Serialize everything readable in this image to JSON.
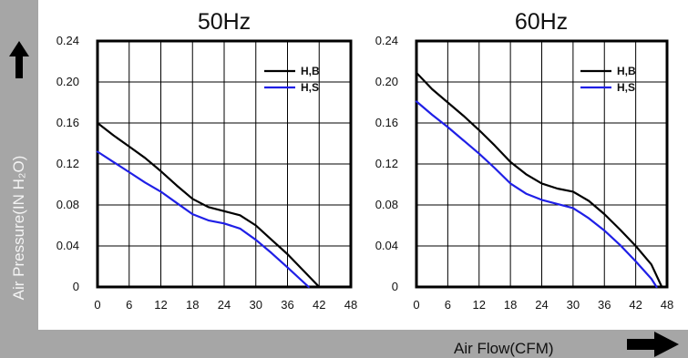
{
  "y_axis_title": "Air Pressure(IN H₂O)",
  "x_axis_title": "Air Flow(CFM)",
  "colors": {
    "band": "#a6a6a6",
    "series_hb": "#000000",
    "series_hs": "#1f1fe6",
    "grid": "#000000",
    "arrow": "#000000"
  },
  "icons": {
    "y_arrow": "arrow-up-icon",
    "x_arrow": "arrow-right-icon"
  },
  "chart_data": [
    {
      "type": "line",
      "title": "50Hz",
      "xlabel": "Air Flow(CFM)",
      "ylabel": "Air Pressure(IN H₂O)",
      "xlim": [
        0,
        48
      ],
      "ylim": [
        0,
        0.24
      ],
      "xticks": [
        "0",
        "6",
        "12",
        "18",
        "24",
        "30",
        "36",
        "42",
        "48"
      ],
      "yticks": [
        "0",
        "0.04",
        "0.08",
        "0.12",
        "0.16",
        "0.20",
        "0.24"
      ],
      "grid": true,
      "legend": "top-right",
      "series": [
        {
          "name": "H,B",
          "color": "#000000",
          "x": [
            0,
            3,
            6,
            9,
            12,
            15,
            18,
            21,
            24,
            27,
            30,
            33,
            36,
            39,
            42
          ],
          "y": [
            0.16,
            0.148,
            0.137,
            0.126,
            0.113,
            0.099,
            0.086,
            0.078,
            0.074,
            0.07,
            0.06,
            0.046,
            0.032,
            0.016,
            0.0
          ]
        },
        {
          "name": "H,S",
          "color": "#1f1fe6",
          "x": [
            0,
            3,
            6,
            9,
            12,
            15,
            18,
            21,
            24,
            27,
            30,
            33,
            36,
            40
          ],
          "y": [
            0.132,
            0.122,
            0.112,
            0.102,
            0.093,
            0.082,
            0.071,
            0.065,
            0.062,
            0.057,
            0.046,
            0.033,
            0.019,
            0.0
          ]
        }
      ]
    },
    {
      "type": "line",
      "title": "60Hz",
      "xlabel": "Air Flow(CFM)",
      "ylabel": "Air Pressure(IN H₂O)",
      "xlim": [
        0,
        48
      ],
      "ylim": [
        0,
        0.24
      ],
      "xticks": [
        "0",
        "6",
        "12",
        "18",
        "24",
        "30",
        "36",
        "42",
        "48"
      ],
      "yticks": [
        "0",
        "0.04",
        "0.08",
        "0.12",
        "0.16",
        "0.20",
        "0.24"
      ],
      "grid": true,
      "legend": "top-right",
      "series": [
        {
          "name": "H,B",
          "color": "#000000",
          "x": [
            0,
            3,
            6,
            9,
            12,
            15,
            18,
            21,
            24,
            27,
            30,
            33,
            36,
            39,
            42,
            45,
            47
          ],
          "y": [
            0.209,
            0.193,
            0.18,
            0.167,
            0.153,
            0.138,
            0.122,
            0.11,
            0.101,
            0.096,
            0.093,
            0.084,
            0.071,
            0.056,
            0.04,
            0.022,
            0.0
          ]
        },
        {
          "name": "H,S",
          "color": "#1f1fe6",
          "x": [
            0,
            3,
            6,
            9,
            12,
            15,
            18,
            21,
            24,
            27,
            30,
            33,
            36,
            39,
            42,
            45,
            46
          ],
          "y": [
            0.181,
            0.168,
            0.156,
            0.143,
            0.13,
            0.116,
            0.101,
            0.091,
            0.085,
            0.081,
            0.077,
            0.067,
            0.055,
            0.041,
            0.025,
            0.008,
            0.0
          ]
        }
      ]
    }
  ]
}
